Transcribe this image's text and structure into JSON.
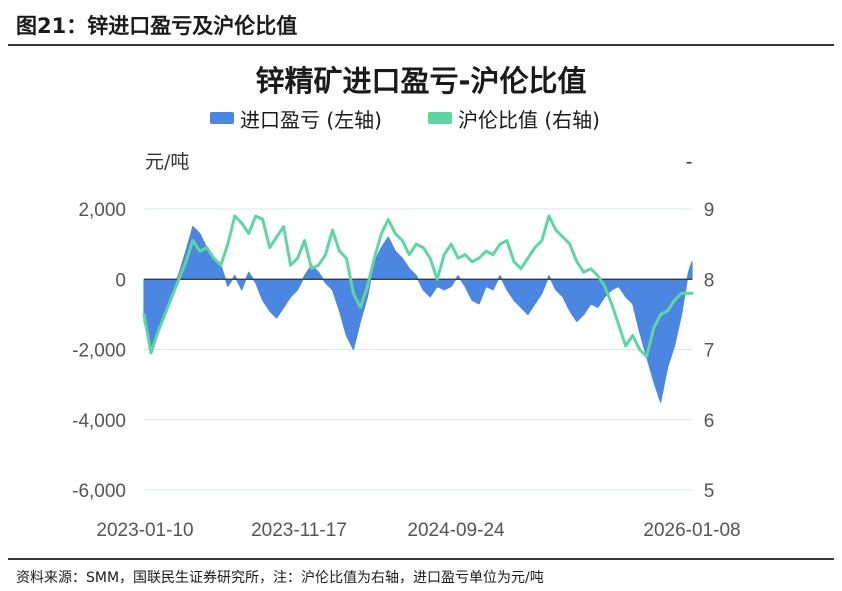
{
  "figure": {
    "label": "图21：锌进口盈亏及沪伦比值",
    "source": "资料来源：SMM，国联民生证券研究所，注：沪伦比值为右轴，进口盈亏单位为元/吨"
  },
  "colors": {
    "profit": "#4b86e0",
    "ratio": "#5ed6a4",
    "grid": "#dfe4ee",
    "zero": "#333333"
  },
  "chart_data": {
    "type": "bar+line",
    "title": "锌精矿进口盈亏-沪伦比值",
    "legend": {
      "placement": "top-center",
      "profit": "进口盈亏 (左轴)",
      "ratio": "沪伦比值 (右轴)"
    },
    "ylabel_left": "元/吨",
    "ylabel_right": "-",
    "ylim_left": [
      -6000,
      2000
    ],
    "ylim_right": [
      5,
      9
    ],
    "yticks_left": [
      "2,000",
      "0",
      "-2,000",
      "-4,000",
      "-6,000"
    ],
    "yticks_right": [
      "9",
      "8",
      "7",
      "6",
      "5"
    ],
    "xlim": [
      "2023-01-10",
      "2026-01-13"
    ],
    "xticks": [
      "2023-01-10",
      "2023-11-17",
      "2024-09-24",
      "2026-01-08"
    ],
    "grid": "horizontal",
    "series": [
      {
        "name": "进口盈亏 (左轴)",
        "kind": "area",
        "axis": "left",
        "x": [
          "2023-01-10",
          "2023-01-24",
          "2023-02-07",
          "2023-02-21",
          "2023-03-07",
          "2023-03-21",
          "2023-04-04",
          "2023-04-18",
          "2023-05-02",
          "2023-05-16",
          "2023-05-30",
          "2023-06-13",
          "2023-06-27",
          "2023-07-11",
          "2023-07-25",
          "2023-08-08",
          "2023-08-22",
          "2023-09-05",
          "2023-09-19",
          "2023-10-03",
          "2023-10-17",
          "2023-10-31",
          "2023-11-14",
          "2023-11-28",
          "2023-12-12",
          "2023-12-26",
          "2024-01-09",
          "2024-01-23",
          "2024-02-06",
          "2024-02-20",
          "2024-03-05",
          "2024-03-19",
          "2024-04-02",
          "2024-04-16",
          "2024-04-30",
          "2024-05-14",
          "2024-05-28",
          "2024-06-11",
          "2024-06-25",
          "2024-07-09",
          "2024-07-23",
          "2024-08-06",
          "2024-08-20",
          "2024-09-03",
          "2024-09-17",
          "2024-10-01",
          "2024-10-15",
          "2024-10-29",
          "2024-11-12",
          "2024-11-26",
          "2024-12-10",
          "2024-12-24",
          "2025-01-07",
          "2025-01-21",
          "2025-02-04",
          "2025-02-18",
          "2025-03-04",
          "2025-03-18",
          "2025-04-01",
          "2025-04-15",
          "2025-04-29",
          "2025-05-13",
          "2025-05-27",
          "2025-06-10",
          "2025-06-24",
          "2025-07-08",
          "2025-07-22",
          "2025-08-05",
          "2025-08-19",
          "2025-09-02",
          "2025-09-16",
          "2025-09-30",
          "2025-10-14",
          "2025-10-28",
          "2025-11-11",
          "2025-11-25",
          "2025-12-09",
          "2025-12-23",
          "2026-01-06",
          "2026-01-13"
        ],
        "values": [
          -1200,
          -1900,
          -1500,
          -900,
          -400,
          150,
          800,
          1500,
          1300,
          900,
          600,
          400,
          -200,
          100,
          -300,
          200,
          -100,
          -600,
          -900,
          -1100,
          -800,
          -500,
          -300,
          100,
          400,
          200,
          -100,
          -300,
          -900,
          -1600,
          -2000,
          -1200,
          -500,
          500,
          900,
          1200,
          800,
          600,
          300,
          100,
          -300,
          -500,
          -200,
          -300,
          -200,
          100,
          -200,
          -600,
          -700,
          -200,
          -300,
          100,
          -300,
          -600,
          -800,
          -1000,
          -700,
          -400,
          100,
          -300,
          -500,
          -900,
          -1200,
          -1000,
          -700,
          -800,
          -500,
          -300,
          -200,
          -500,
          -700,
          -1500,
          -2200,
          -2900,
          -3500,
          -2500,
          -1900,
          -1000,
          200,
          500
        ]
      },
      {
        "name": "沪伦比值 (右轴)",
        "kind": "line",
        "axis": "right",
        "x": [
          "2023-01-10",
          "2023-01-24",
          "2023-02-07",
          "2023-02-21",
          "2023-03-07",
          "2023-03-21",
          "2023-04-04",
          "2023-04-18",
          "2023-05-02",
          "2023-05-16",
          "2023-05-30",
          "2023-06-13",
          "2023-06-27",
          "2023-07-11",
          "2023-07-25",
          "2023-08-08",
          "2023-08-22",
          "2023-09-05",
          "2023-09-19",
          "2023-10-03",
          "2023-10-17",
          "2023-10-31",
          "2023-11-14",
          "2023-11-28",
          "2023-12-12",
          "2023-12-26",
          "2024-01-09",
          "2024-01-23",
          "2024-02-06",
          "2024-02-20",
          "2024-03-05",
          "2024-03-19",
          "2024-04-02",
          "2024-04-16",
          "2024-04-30",
          "2024-05-14",
          "2024-05-28",
          "2024-06-11",
          "2024-06-25",
          "2024-07-09",
          "2024-07-23",
          "2024-08-06",
          "2024-08-20",
          "2024-09-03",
          "2024-09-17",
          "2024-10-01",
          "2024-10-15",
          "2024-10-29",
          "2024-11-12",
          "2024-11-26",
          "2024-12-10",
          "2024-12-24",
          "2025-01-07",
          "2025-01-21",
          "2025-02-04",
          "2025-02-18",
          "2025-03-04",
          "2025-03-18",
          "2025-04-01",
          "2025-04-15",
          "2025-04-29",
          "2025-05-13",
          "2025-05-27",
          "2025-06-10",
          "2025-06-24",
          "2025-07-08",
          "2025-07-22",
          "2025-08-05",
          "2025-08-19",
          "2025-09-02",
          "2025-09-16",
          "2025-09-30",
          "2025-10-14",
          "2025-10-28",
          "2025-11-11",
          "2025-11-25",
          "2025-12-09",
          "2025-12-23",
          "2026-01-06",
          "2026-01-13"
        ],
        "values": [
          7.5,
          6.95,
          7.25,
          7.5,
          7.75,
          8.0,
          8.25,
          8.55,
          8.4,
          8.45,
          8.3,
          8.2,
          8.5,
          8.9,
          8.8,
          8.65,
          8.9,
          8.85,
          8.45,
          8.6,
          8.75,
          8.2,
          8.3,
          8.55,
          8.15,
          8.2,
          8.35,
          8.7,
          8.4,
          8.3,
          7.8,
          7.6,
          7.9,
          8.3,
          8.65,
          8.85,
          8.65,
          8.55,
          8.35,
          8.5,
          8.45,
          8.3,
          8.0,
          8.35,
          8.5,
          8.3,
          8.35,
          8.25,
          8.3,
          8.4,
          8.35,
          8.5,
          8.55,
          8.25,
          8.15,
          8.3,
          8.45,
          8.55,
          8.9,
          8.7,
          8.6,
          8.5,
          8.25,
          8.1,
          8.15,
          8.05,
          7.9,
          7.65,
          7.35,
          7.05,
          7.2,
          7.0,
          6.9,
          7.3,
          7.5,
          7.55,
          7.7,
          7.8,
          7.8,
          7.8
        ]
      }
    ]
  }
}
